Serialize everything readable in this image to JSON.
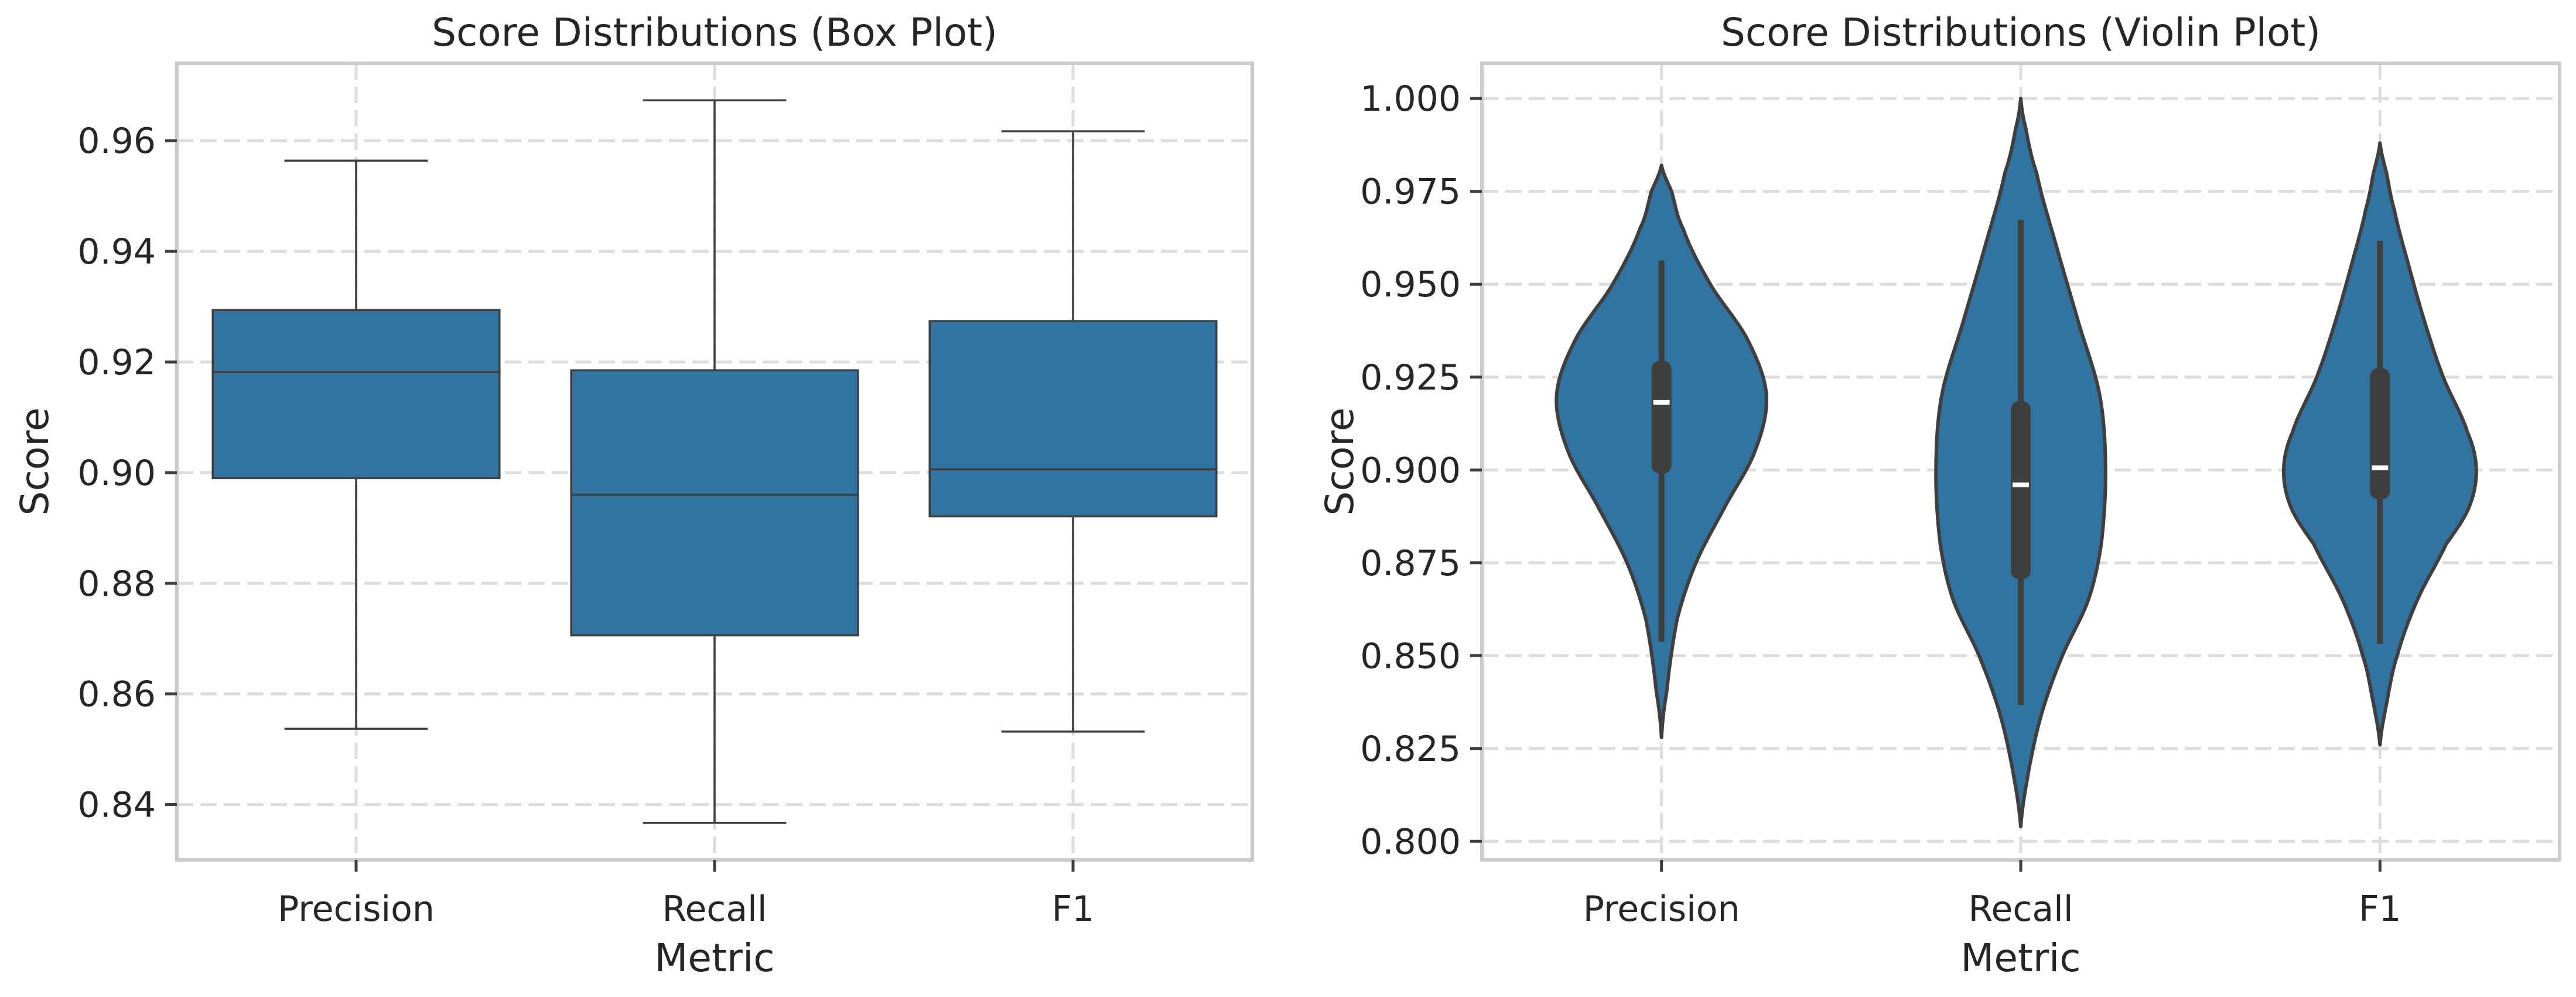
{
  "chart_data": [
    {
      "type": "box",
      "title": "Score Distributions (Box Plot)",
      "xlabel": "Metric",
      "ylabel": "Score",
      "categories": [
        "Precision",
        "Recall",
        "F1"
      ],
      "ylim": [
        0.83,
        0.974
      ],
      "yticks": [
        0.84,
        0.86,
        0.88,
        0.9,
        0.92,
        0.94,
        0.96
      ],
      "ytick_labels": [
        "0.84",
        "0.86",
        "0.88",
        "0.90",
        "0.92",
        "0.94",
        "0.96"
      ],
      "grid": true,
      "color": "#3274a1",
      "boxes": [
        {
          "category": "Precision",
          "whisker_low": 0.8537,
          "q1": 0.899,
          "median": 0.9182,
          "q3": 0.9294,
          "whisker_high": 0.9564
        },
        {
          "category": "Recall",
          "whisker_low": 0.8367,
          "q1": 0.8706,
          "median": 0.896,
          "q3": 0.9185,
          "whisker_high": 0.9673
        },
        {
          "category": "F1",
          "whisker_low": 0.8532,
          "q1": 0.8921,
          "median": 0.9006,
          "q3": 0.9274,
          "whisker_high": 0.9617
        }
      ]
    },
    {
      "type": "violin",
      "title": "Score Distributions (Violin Plot)",
      "xlabel": "Metric",
      "ylabel": "Score",
      "categories": [
        "Precision",
        "Recall",
        "F1"
      ],
      "ylim": [
        0.795,
        1.0095
      ],
      "yticks": [
        0.8,
        0.825,
        0.85,
        0.875,
        0.9,
        0.925,
        0.95,
        0.975,
        1.0
      ],
      "ytick_labels": [
        "0.800",
        "0.825",
        "0.850",
        "0.875",
        "0.900",
        "0.925",
        "0.950",
        "0.975",
        "1.000"
      ],
      "grid": true,
      "color": "#3274a1",
      "violins": [
        {
          "category": "Precision",
          "y_min": 0.828,
          "y_max": 0.982,
          "q1": 0.899,
          "median": 0.9182,
          "q3": 0.9294,
          "whisker_low": 0.8537,
          "whisker_high": 0.9564,
          "density_profile": [
            [
              0.828,
              0.0
            ],
            [
              0.84,
              0.035
            ],
            [
              0.86,
              0.11
            ],
            [
              0.875,
              0.24
            ],
            [
              0.89,
              0.44
            ],
            [
              0.905,
              0.65
            ],
            [
              0.92,
              0.73
            ],
            [
              0.935,
              0.6
            ],
            [
              0.95,
              0.34
            ],
            [
              0.965,
              0.15
            ],
            [
              0.975,
              0.07
            ],
            [
              0.982,
              0.0
            ]
          ]
        },
        {
          "category": "Recall",
          "y_min": 0.804,
          "y_max": 1.0,
          "q1": 0.8706,
          "median": 0.896,
          "q3": 0.9185,
          "whisker_low": 0.8367,
          "whisker_high": 0.9673,
          "density_profile": [
            [
              0.804,
              0.0
            ],
            [
              0.82,
              0.06
            ],
            [
              0.835,
              0.15
            ],
            [
              0.85,
              0.29
            ],
            [
              0.865,
              0.47
            ],
            [
              0.88,
              0.56
            ],
            [
              0.9,
              0.59
            ],
            [
              0.92,
              0.55
            ],
            [
              0.94,
              0.4
            ],
            [
              0.96,
              0.25
            ],
            [
              0.98,
              0.11
            ],
            [
              0.992,
              0.035
            ],
            [
              1.0,
              0.0
            ]
          ]
        },
        {
          "category": "F1",
          "y_min": 0.826,
          "y_max": 0.988,
          "q1": 0.8921,
          "median": 0.9006,
          "q3": 0.9274,
          "whisker_low": 0.8532,
          "whisker_high": 0.9617,
          "density_profile": [
            [
              0.826,
              0.0
            ],
            [
              0.838,
              0.05
            ],
            [
              0.85,
              0.12
            ],
            [
              0.865,
              0.26
            ],
            [
              0.88,
              0.46
            ],
            [
              0.89,
              0.62
            ],
            [
              0.9,
              0.67
            ],
            [
              0.91,
              0.61
            ],
            [
              0.925,
              0.44
            ],
            [
              0.94,
              0.31
            ],
            [
              0.955,
              0.2
            ],
            [
              0.97,
              0.1
            ],
            [
              0.98,
              0.045
            ],
            [
              0.988,
              0.0
            ]
          ]
        }
      ]
    }
  ]
}
